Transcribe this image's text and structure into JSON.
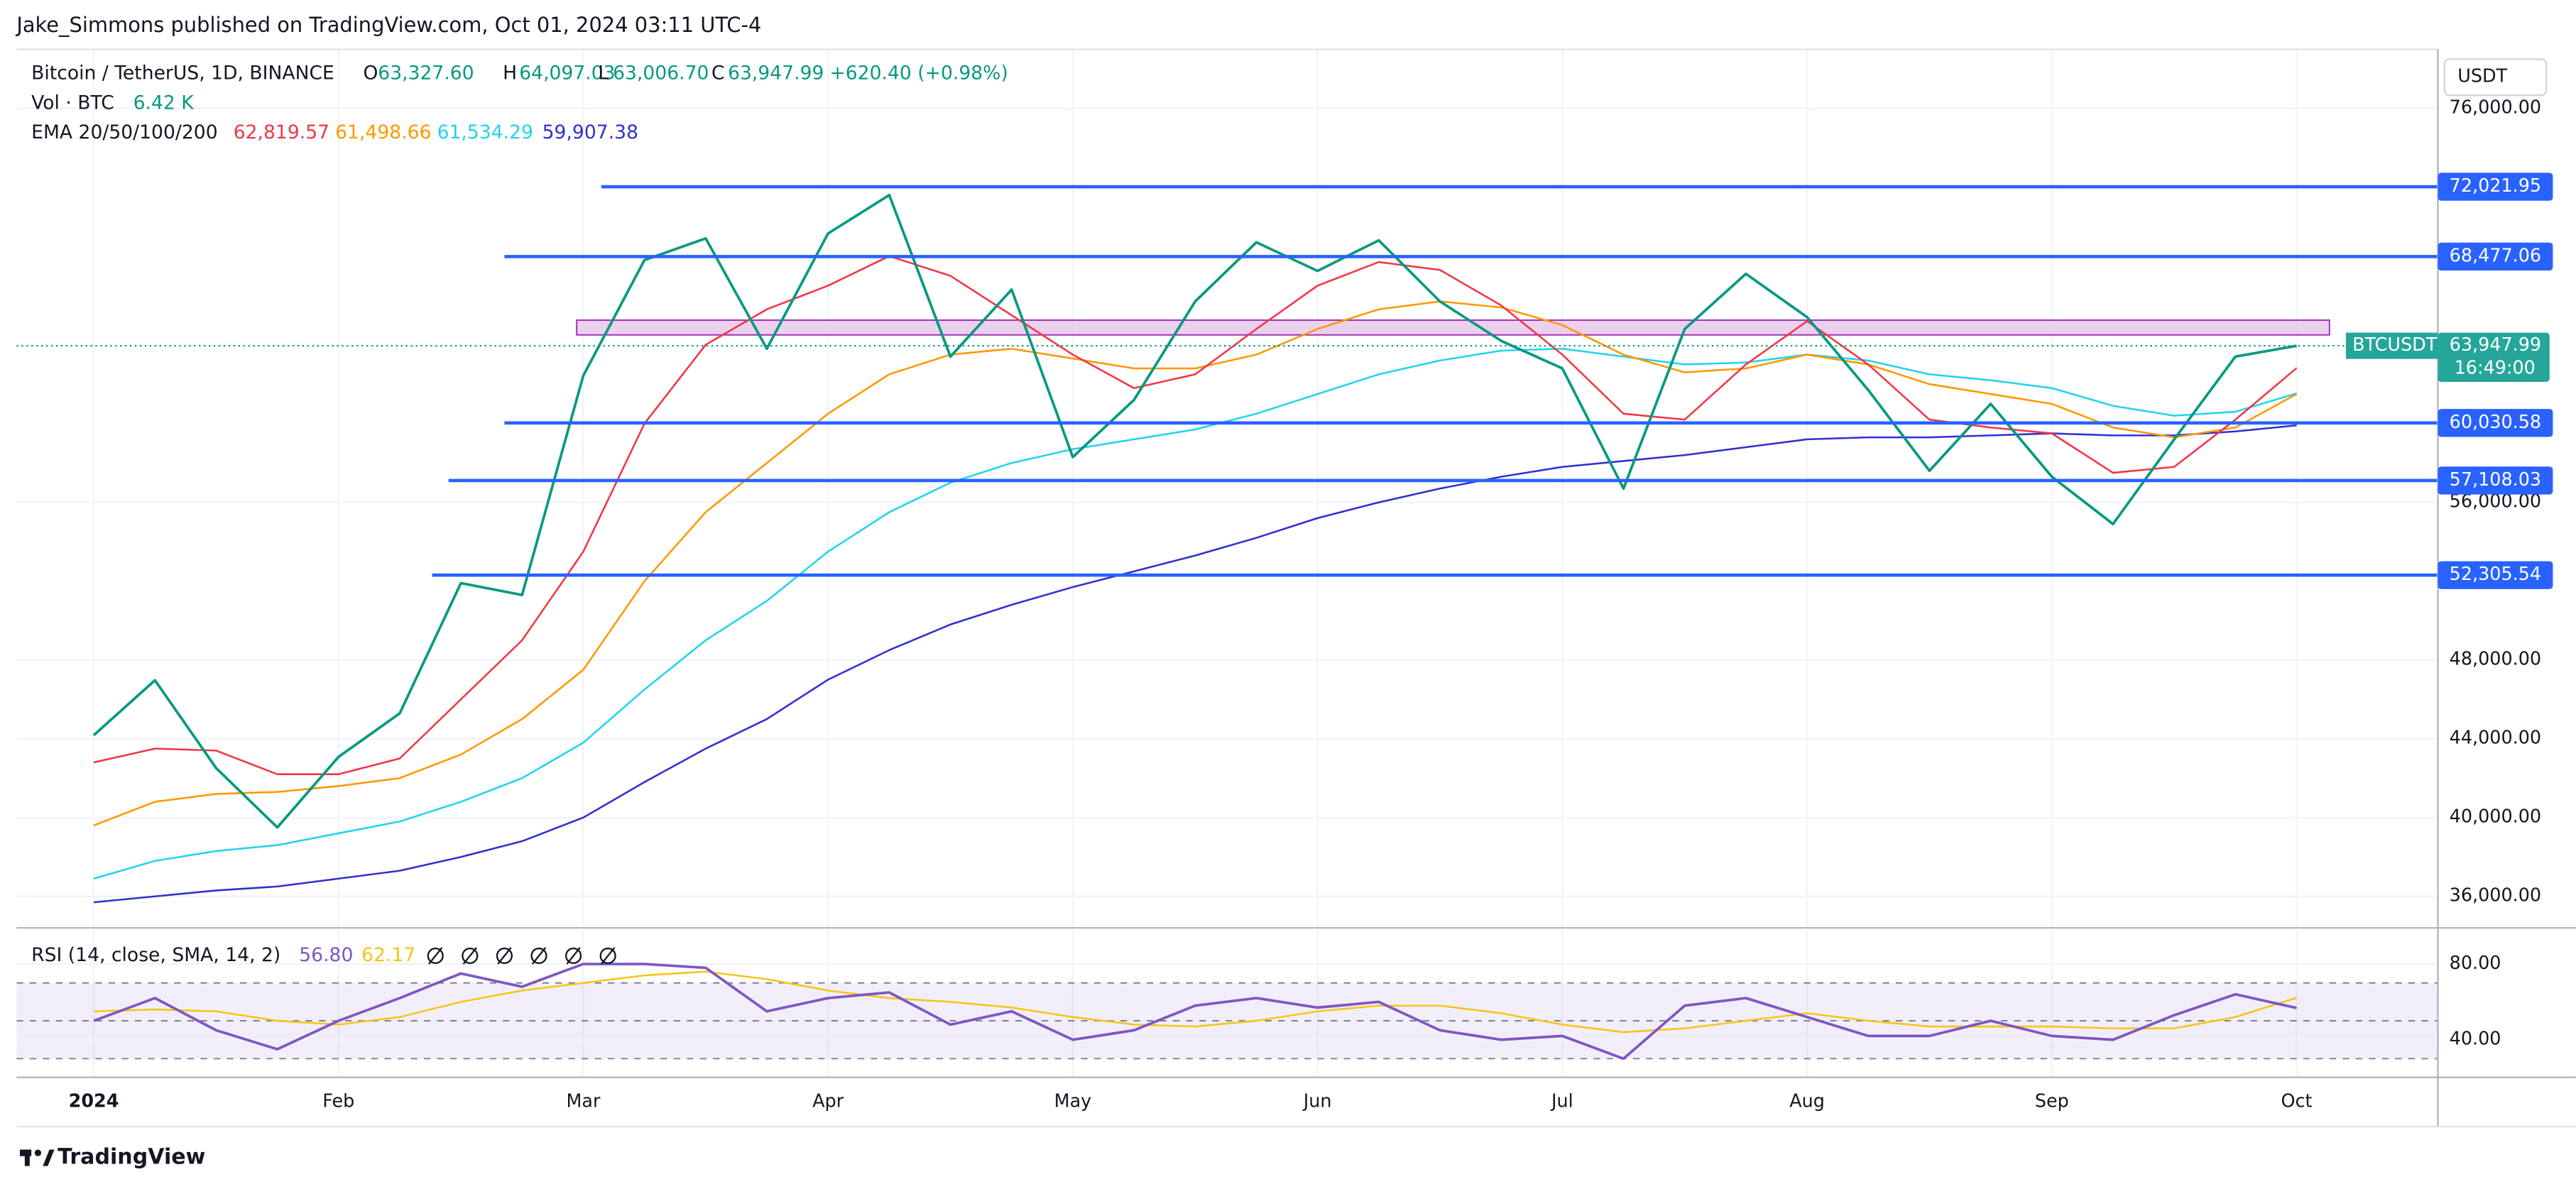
{
  "byline": "Jake_Simmons published on TradingView.com, Oct 01, 2024 03:11 UTC-4",
  "footer": "TradingView",
  "chart_data": [
    {
      "type": "line",
      "title": "Bitcoin / TetherUS, 1D, BINANCE",
      "ohlc": [
        {
          "label": "O",
          "value": "63,327.60"
        },
        {
          "label": "H",
          "value": "64,097.03"
        },
        {
          "label": "L",
          "value": "63,006.70"
        },
        {
          "label": "C",
          "value": "63,947.99"
        }
      ],
      "change": "+620.40 (+0.98%)",
      "volume": {
        "label": "Vol · BTC",
        "value": "6.42 K"
      },
      "ema_label": "EMA 20/50/100/200",
      "axis_unit": "USDT",
      "countdown": "16:49:00",
      "categories": [
        "2024",
        null,
        null,
        null,
        "Feb",
        null,
        null,
        null,
        "Mar",
        null,
        null,
        null,
        "Apr",
        null,
        null,
        null,
        "May",
        null,
        null,
        null,
        "Jun",
        null,
        null,
        null,
        "Jul",
        null,
        null,
        null,
        "Aug",
        null,
        null,
        null,
        "Sep",
        null,
        null,
        null,
        "Oct"
      ],
      "series": [
        {
          "name": "BTCUSDT",
          "color": "#089981",
          "last_label": "63,947.99",
          "values": [
            44180,
            46970,
            42510,
            39500,
            43080,
            45290,
            51900,
            51300,
            62430,
            68300,
            69400,
            63800,
            69650,
            71600,
            63400,
            66800,
            58300,
            61200,
            66200,
            69200,
            67750,
            69300,
            66200,
            64200,
            62800,
            56700,
            64800,
            67600,
            65400,
            61700,
            57600,
            61000,
            57300,
            54900,
            59200,
            63400,
            63947.99
          ]
        },
        {
          "color": "#f23645",
          "last_label": "62,819.57",
          "values": [
            42800,
            43500,
            43400,
            42200,
            42200,
            43000,
            46000,
            49000,
            53500,
            60000,
            64000,
            65800,
            67000,
            68500,
            67500,
            65500,
            63500,
            61800,
            62500,
            64800,
            67000,
            68200,
            67800,
            66000,
            63500,
            60500,
            60200,
            63000,
            65200,
            63000,
            60200,
            59800,
            59500,
            57500,
            57800,
            60200,
            62819.57
          ]
        },
        {
          "color": "#ff9800",
          "last_label": "61,498.66",
          "values": [
            39600,
            40800,
            41200,
            41300,
            41600,
            42000,
            43200,
            45000,
            47500,
            52000,
            55500,
            58000,
            60500,
            62500,
            63500,
            63800,
            63300,
            62800,
            62800,
            63500,
            64800,
            65800,
            66200,
            65900,
            65000,
            63500,
            62600,
            62800,
            63500,
            63000,
            62000,
            61500,
            61000,
            59800,
            59300,
            59800,
            61498.66
          ]
        },
        {
          "color": "#22d3ee",
          "last_label": "61,534.29",
          "values": [
            36900,
            37800,
            38300,
            38600,
            39200,
            39800,
            40800,
            42000,
            43800,
            46500,
            49000,
            51000,
            53500,
            55500,
            57000,
            58000,
            58700,
            59200,
            59700,
            60500,
            61500,
            62500,
            63200,
            63700,
            63800,
            63400,
            63000,
            63100,
            63500,
            63200,
            62500,
            62200,
            61800,
            60900,
            60400,
            60600,
            61534.29
          ]
        },
        {
          "color": "#3030d0",
          "last_label": "59,907.38",
          "values": [
            35700,
            36000,
            36300,
            36500,
            36900,
            37300,
            38000,
            38800,
            40000,
            41800,
            43500,
            45000,
            47000,
            48500,
            49800,
            50800,
            51700,
            52500,
            53300,
            54200,
            55200,
            56000,
            56700,
            57300,
            57800,
            58100,
            58400,
            58800,
            59200,
            59300,
            59300,
            59400,
            59500,
            59400,
            59400,
            59600,
            59907.38
          ]
        }
      ],
      "ylim": [
        34400,
        79000
      ],
      "yticks": [
        {
          "value": 36000,
          "label": "36,000.00"
        },
        {
          "value": 40000,
          "label": "40,000.00"
        },
        {
          "value": 44000,
          "label": "44,000.00"
        },
        {
          "value": 48000,
          "label": "48,000.00"
        },
        {
          "value": 56000,
          "label": "56,000.00"
        },
        {
          "value": 76000,
          "label": "76,000.00"
        }
      ],
      "levels": [
        {
          "value": 72021.95,
          "label": "72,021.95"
        },
        {
          "value": 68477.06,
          "label": "68,477.06"
        },
        {
          "value": 60030.58,
          "label": "60,030.58"
        },
        {
          "value": 57108.03,
          "label": "57,108.03"
        },
        {
          "value": 52305.54,
          "label": "52,305.54"
        }
      ],
      "level_color": "#2962ff",
      "zone": [
        64500,
        65250
      ],
      "zone_color": "#e1bee7",
      "grid": true
    },
    {
      "type": "line",
      "title": "RSI (14, close, SMA, 14, 2)",
      "series": [
        {
          "color": "#7e57c2",
          "last_label": "56.80",
          "values": [
            50,
            62,
            45,
            35,
            50,
            62,
            75,
            68,
            80,
            80,
            78,
            55,
            62,
            65,
            48,
            55,
            40,
            45,
            58,
            62,
            57,
            60,
            45,
            40,
            42,
            30,
            58,
            62,
            52,
            42,
            42,
            50,
            42,
            40,
            53,
            64,
            56.8
          ]
        },
        {
          "color": "#f5c518",
          "last_label": "62.17",
          "values": [
            55,
            56,
            55,
            50,
            48,
            52,
            60,
            66,
            70,
            74,
            76,
            72,
            66,
            62,
            60,
            57,
            52,
            48,
            47,
            50,
            55,
            58,
            58,
            54,
            48,
            44,
            46,
            50,
            54,
            50,
            47,
            47,
            47,
            46,
            46,
            52,
            62.17
          ]
        }
      ],
      "ylim": [
        21,
        96.5
      ],
      "yticks": [
        {
          "value": 40,
          "label": "40.00"
        },
        {
          "value": 80,
          "label": "80.00"
        }
      ],
      "levels": [
        30,
        50,
        70
      ],
      "band": [
        30,
        70
      ]
    }
  ]
}
